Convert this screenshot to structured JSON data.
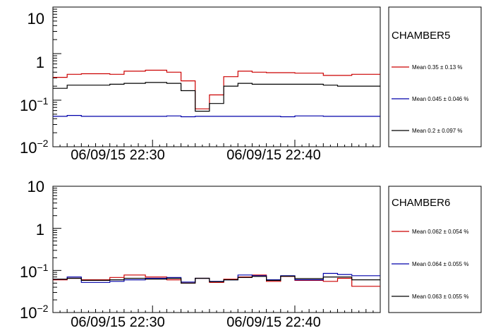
{
  "chart_data": [
    {
      "type": "line",
      "step": true,
      "yscale": "log",
      "ylim": [
        0.01,
        10
      ],
      "ytick_labels": [
        "10",
        "1",
        "10^-1",
        "10^-2"
      ],
      "xlim": [
        "06/09/15 22:23:00",
        "06/09/15 22:46:00"
      ],
      "x_tick_labels": [
        "06/09/15 22:30",
        "06/09/15 22:40"
      ],
      "x_ticks": [
        "06/09/15 22:30:00",
        "06/09/15 22:40:00"
      ],
      "x_edges": [
        "06/09/15 22:23:00",
        "06/09/15 22:24:00",
        "06/09/15 22:25:00",
        "06/09/15 22:27:00",
        "06/09/15 22:28:00",
        "06/09/15 22:29:30",
        "06/09/15 22:31:00",
        "06/09/15 22:32:00",
        "06/09/15 22:33:00",
        "06/09/15 22:34:00",
        "06/09/15 22:35:00",
        "06/09/15 22:36:00",
        "06/09/15 22:37:00",
        "06/09/15 22:38:00",
        "06/09/15 22:39:00",
        "06/09/15 22:40:00",
        "06/09/15 22:42:00",
        "06/09/15 22:43:00",
        "06/09/15 22:44:00",
        "06/09/15 22:46:00"
      ],
      "legend": {
        "title": "CHAMBER5",
        "position": "right",
        "entries": [
          {
            "series": 0,
            "text": "Mean  0.35 ±  0.13 %"
          },
          {
            "series": 1,
            "text": "Mean 0.045 ± 0.046 %"
          },
          {
            "series": 2,
            "text": "Mean   0.2 ± 0.097 %"
          }
        ]
      },
      "series": [
        {
          "color": "#cc0000",
          "values": [
            0.31,
            0.36,
            0.37,
            0.36,
            0.42,
            0.44,
            0.4,
            0.26,
            0.065,
            0.13,
            0.32,
            0.42,
            0.4,
            0.39,
            0.39,
            0.38,
            0.34,
            0.34,
            0.36
          ]
        },
        {
          "color": "#0000aa",
          "values": [
            0.045,
            0.047,
            0.045,
            0.045,
            0.045,
            0.045,
            0.046,
            0.044,
            0.045,
            0.045,
            0.045,
            0.045,
            0.045,
            0.045,
            0.044,
            0.046,
            0.045,
            0.045,
            0.045
          ]
        },
        {
          "color": "#000000",
          "values": [
            0.18,
            0.21,
            0.21,
            0.22,
            0.23,
            0.24,
            0.23,
            0.16,
            0.058,
            0.085,
            0.2,
            0.23,
            0.22,
            0.22,
            0.22,
            0.22,
            0.21,
            0.2,
            0.2
          ]
        }
      ]
    },
    {
      "type": "line",
      "step": true,
      "yscale": "log",
      "ylim": [
        0.01,
        10
      ],
      "ytick_labels": [
        "10",
        "1",
        "10^-1",
        "10^-2"
      ],
      "xlim": [
        "06/09/15 22:23:00",
        "06/09/15 22:46:00"
      ],
      "x_tick_labels": [
        "06/09/15 22:30",
        "06/09/15 22:40"
      ],
      "x_ticks": [
        "06/09/15 22:30:00",
        "06/09/15 22:40:00"
      ],
      "x_edges": [
        "06/09/15 22:23:00",
        "06/09/15 22:24:00",
        "06/09/15 22:25:00",
        "06/09/15 22:27:00",
        "06/09/15 22:28:00",
        "06/09/15 22:29:30",
        "06/09/15 22:31:00",
        "06/09/15 22:32:00",
        "06/09/15 22:33:00",
        "06/09/15 22:34:00",
        "06/09/15 22:35:00",
        "06/09/15 22:36:00",
        "06/09/15 22:37:00",
        "06/09/15 22:38:00",
        "06/09/15 22:39:00",
        "06/09/15 22:40:00",
        "06/09/15 22:42:00",
        "06/09/15 22:43:00",
        "06/09/15 22:44:00",
        "06/09/15 22:46:00"
      ],
      "legend": {
        "title": "CHAMBER6",
        "position": "right",
        "entries": [
          {
            "series": 0,
            "text": "Mean 0.062 ± 0.054 %"
          },
          {
            "series": 1,
            "text": "Mean 0.064 ± 0.055 %"
          },
          {
            "series": 2,
            "text": "Mean 0.063 ± 0.055 %"
          }
        ]
      },
      "series": [
        {
          "color": "#cc0000",
          "values": [
            0.06,
            0.065,
            0.06,
            0.068,
            0.078,
            0.07,
            0.06,
            0.05,
            0.065,
            0.052,
            0.062,
            0.07,
            0.078,
            0.055,
            0.072,
            0.058,
            0.055,
            0.065,
            0.042
          ]
        },
        {
          "color": "#0000aa",
          "values": [
            0.062,
            0.07,
            0.052,
            0.055,
            0.06,
            0.065,
            0.068,
            0.053,
            0.065,
            0.055,
            0.06,
            0.078,
            0.075,
            0.06,
            0.075,
            0.06,
            0.085,
            0.08,
            0.075
          ]
        },
        {
          "color": "#000000",
          "values": [
            0.062,
            0.065,
            0.058,
            0.06,
            0.065,
            0.062,
            0.065,
            0.05,
            0.065,
            0.054,
            0.06,
            0.068,
            0.072,
            0.058,
            0.073,
            0.064,
            0.07,
            0.07,
            0.06
          ]
        }
      ]
    }
  ]
}
